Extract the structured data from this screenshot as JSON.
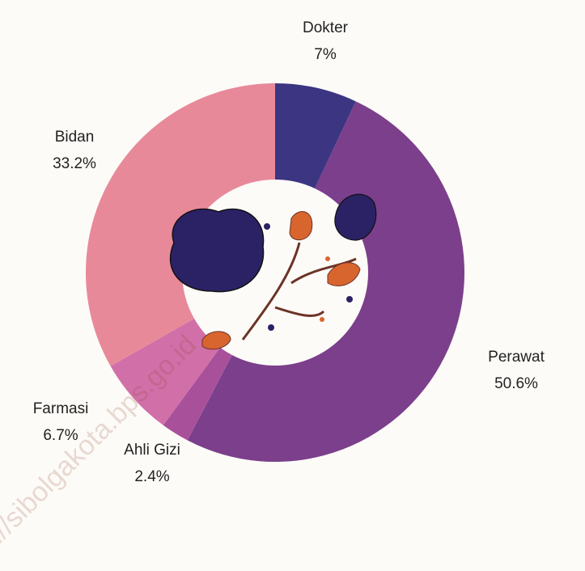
{
  "chart_data": {
    "type": "donut",
    "categories": [
      "Dokter",
      "Perawat",
      "Ahli Gizi",
      "Farmasi",
      "Bidan"
    ],
    "values": [
      7,
      50.6,
      2.4,
      6.7,
      33.2
    ],
    "value_labels": [
      "7%",
      "50.6%",
      "2.4%",
      "6.7%",
      "33.2%"
    ],
    "colors": [
      "#3b3582",
      "#7b3f8c",
      "#a8519a",
      "#d16fa8",
      "#e8899a"
    ],
    "watermark": "https://sibolgakota.bps.go.id"
  }
}
